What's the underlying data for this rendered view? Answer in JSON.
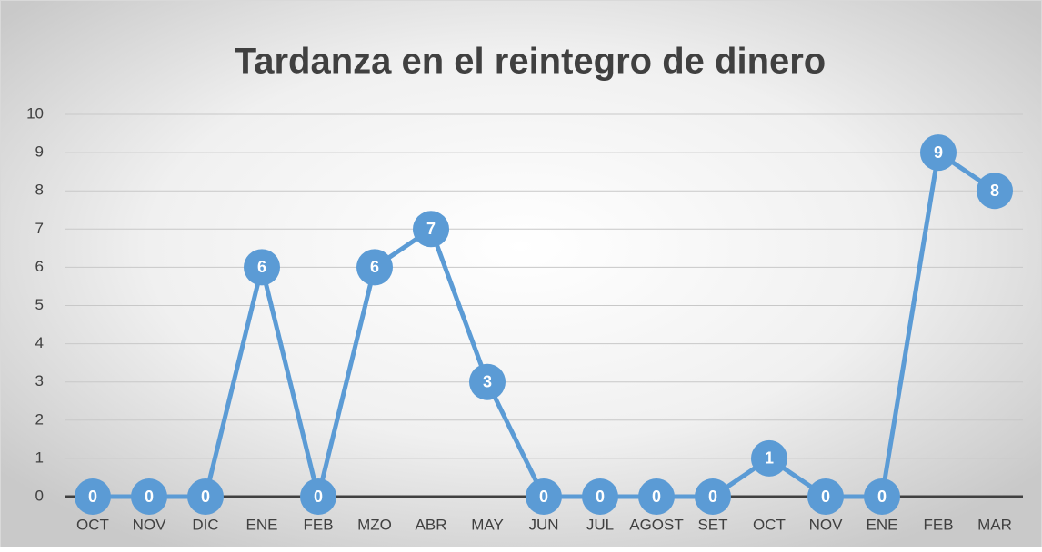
{
  "chart_data": {
    "type": "line",
    "title": "Tardanza en el reintegro de dinero",
    "categories": [
      "OCT",
      "NOV",
      "DIC",
      "ENE",
      "FEB",
      "MZO",
      "ABR",
      "MAY",
      "JUN",
      "JUL",
      "AGOST",
      "SET",
      "OCT",
      "NOV",
      "ENE",
      "FEB",
      "MAR"
    ],
    "values": [
      0,
      0,
      0,
      6,
      0,
      6,
      7,
      3,
      0,
      0,
      0,
      0,
      1,
      0,
      0,
      9,
      8
    ],
    "color": "#5b9bd5",
    "ylim": [
      0,
      10
    ],
    "yticks": [
      0,
      1,
      2,
      3,
      4,
      5,
      6,
      7,
      8,
      9,
      10
    ],
    "grid": true
  }
}
